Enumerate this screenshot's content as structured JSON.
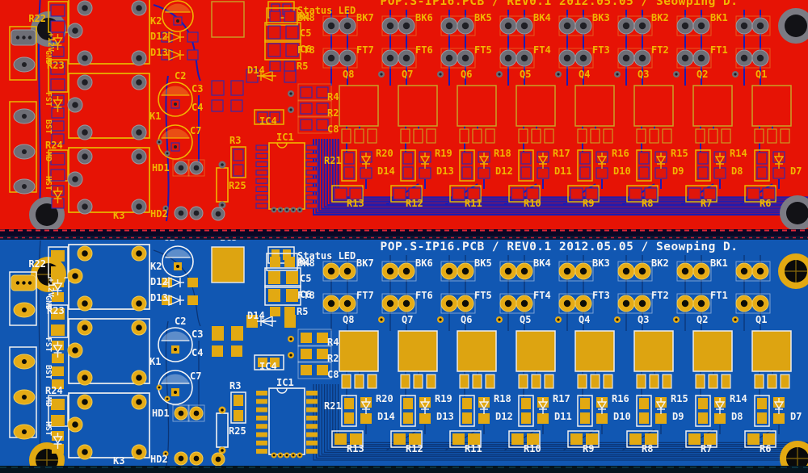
{
  "title": "POP.S-IP16.PCB / REV0.1 2012.05.05 / Seowping D.",
  "status_led_label": "Status LED",
  "boards": [
    {
      "name": "pcb-top-red-copper-view",
      "colors": {
        "board": "#e61305",
        "trace": "#1c1cb2",
        "silk": "#f2b501",
        "padOut": "#6e6e76",
        "padIn": "#1f1f25",
        "padRing": "#9a9aa2",
        "smd": "#e0160a",
        "smdEdge": "#2b2bb4",
        "outline": "#e8b700",
        "faint": "rgba(230,175,60,0.5)",
        "sqFill": "#e61305",
        "sqStroke": "#c9a226",
        "holeOut": "#7b7b83",
        "holeIn": "#121216",
        "hatch": "rgba(240,190,50,0.35)",
        "edge": "#e02838",
        "cross": "none"
      }
    },
    {
      "name": "pcb-bottom-blue-gold-view",
      "colors": {
        "board": "#1157b2",
        "trace": "#0b3576",
        "silk": "#f4f4f4",
        "padOut": "#e5ab16",
        "padIn": "#0e0d07",
        "padRing": "#f0cc55",
        "smd": "#e2a912",
        "smdEdge": "none",
        "outline": "#f0f0f0",
        "faint": "rgba(250,250,250,0.5)",
        "sqFill": "#dda411",
        "sqStroke": "#ececec",
        "holeOut": "#e2a912",
        "holeIn": "#0a0a0a",
        "hatch": "rgba(255,255,255,0.32)",
        "edge": "#c62038",
        "cross": "#8a6a0a"
      }
    }
  ],
  "channel_labels": {
    "bk": [
      "BK8",
      "BK7",
      "BK6",
      "BK5",
      "BK4",
      "BK3",
      "BK2",
      "BK1"
    ],
    "ft": [
      "FT8",
      "FT7",
      "FT6",
      "FT5",
      "FT4",
      "FT3",
      "FT2",
      "FT1"
    ],
    "q": [
      "Q8",
      "Q7",
      "Q6",
      "Q5",
      "Q4",
      "Q3",
      "Q2",
      "Q1"
    ],
    "r_top": [
      "R20",
      "R19",
      "R18",
      "R17",
      "R16",
      "R15",
      "R14"
    ],
    "d": [
      "D14",
      "D13",
      "D12",
      "D11",
      "D10",
      "D9",
      "D8",
      "D7"
    ],
    "r_bottom": [
      "R13",
      "R12",
      "R11",
      "R10",
      "R9",
      "R8",
      "R7",
      "R6"
    ]
  },
  "left_labels": {
    "r22": "R22",
    "p12v": "+12V",
    "gnd": "GND",
    "r23": "R23",
    "fst": "FST",
    "bst": "BST",
    "r24": "R24",
    "md": "MD",
    "hst": "HST"
  },
  "mid_labels": {
    "c1": "C1",
    "ic3": "IC3",
    "k2": "K2",
    "d12": "D12",
    "d13": "D13",
    "c2": "C2",
    "c3": "C3",
    "c4": "C4",
    "k1": "K1",
    "c7": "C7",
    "hd1": "HD1",
    "hd2": "HD2",
    "k3": "K3",
    "d14": "D14",
    "r1": "R1",
    "c5": "C5",
    "c6": "C6",
    "r5": "R5",
    "r4": "R4",
    "r2": "R2",
    "c8": "C8",
    "ic4": "IC4",
    "ic1": "IC1",
    "r3": "R3",
    "r25": "R25",
    "r21": "R21"
  }
}
